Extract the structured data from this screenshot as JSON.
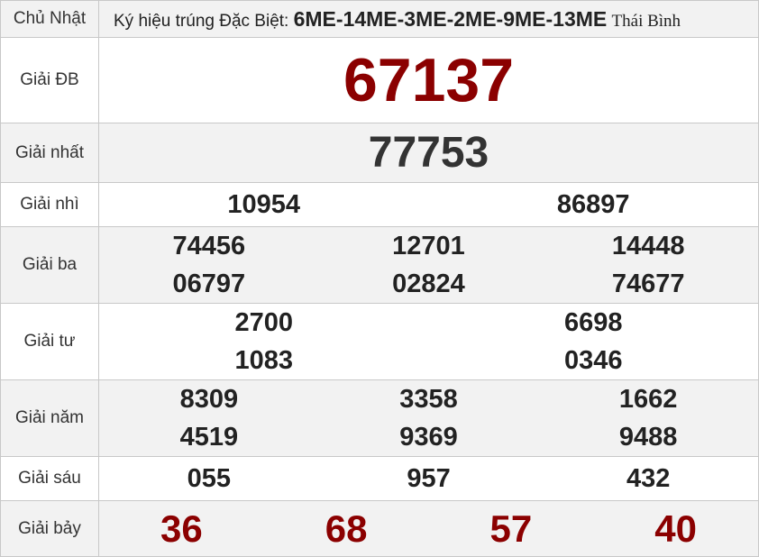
{
  "header": {
    "day": "Chủ Nhật",
    "symbol_label": "Ký hiệu trúng Đặc Biệt:",
    "symbols": "6ME-14ME-3ME-2ME-9ME-13ME",
    "province": "Thái Bình"
  },
  "prizes": {
    "db": {
      "label": "Giải ĐB",
      "numbers": [
        "67137"
      ]
    },
    "nhat": {
      "label": "Giải nhất",
      "numbers": [
        "77753"
      ]
    },
    "nhi": {
      "label": "Giải nhì",
      "numbers": [
        "10954",
        "86897"
      ]
    },
    "ba": {
      "label": "Giải ba",
      "numbers": [
        "74456",
        "12701",
        "14448",
        "06797",
        "02824",
        "74677"
      ]
    },
    "tu": {
      "label": "Giải tư",
      "numbers": [
        "2700",
        "6698",
        "1083",
        "0346"
      ]
    },
    "nam": {
      "label": "Giải năm",
      "numbers": [
        "8309",
        "3358",
        "1662",
        "4519",
        "9369",
        "9488"
      ]
    },
    "sau": {
      "label": "Giải sáu",
      "numbers": [
        "055",
        "957",
        "432"
      ]
    },
    "bay": {
      "label": "Giải bảy",
      "numbers": [
        "36",
        "68",
        "57",
        "40"
      ]
    }
  },
  "colors": {
    "special": "#8b0000",
    "text": "#222222",
    "alt_row": "#f2f2f2"
  }
}
